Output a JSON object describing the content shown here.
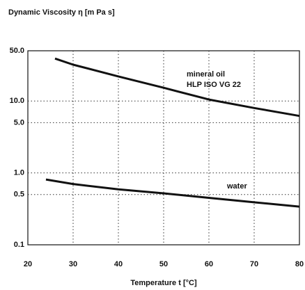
{
  "chart_data": {
    "type": "line",
    "title": "Dynamic Viscosity η [m Pa s]",
    "xlabel": "Temperature t [°C]",
    "xlim": [
      20,
      80
    ],
    "xticks": [
      20,
      30,
      40,
      50,
      60,
      70,
      80
    ],
    "ylim": [
      0.1,
      50
    ],
    "yticks": [
      0.1,
      0.5,
      {
        "value": 1,
        "label": "1.0"
      },
      {
        "value": 5,
        "label": "5.0"
      },
      {
        "value": 10,
        "label": "10.0"
      },
      {
        "value": 50,
        "label": "50.0"
      }
    ],
    "log_y": true,
    "grid": true,
    "series": [
      {
        "name": "mineral oil",
        "color": "#111111",
        "x": [
          26,
          30,
          40,
          50,
          60,
          70,
          80
        ],
        "values": [
          39,
          32,
          22,
          15.3,
          10.5,
          8,
          6.2
        ]
      },
      {
        "name": "water",
        "color": "#111111",
        "x": [
          24,
          30,
          40,
          50,
          60,
          70,
          80
        ],
        "values": [
          0.81,
          0.7,
          0.59,
          0.52,
          0.45,
          0.39,
          0.34
        ]
      }
    ],
    "annotations": [
      "HLP ISO VG 22"
    ]
  }
}
